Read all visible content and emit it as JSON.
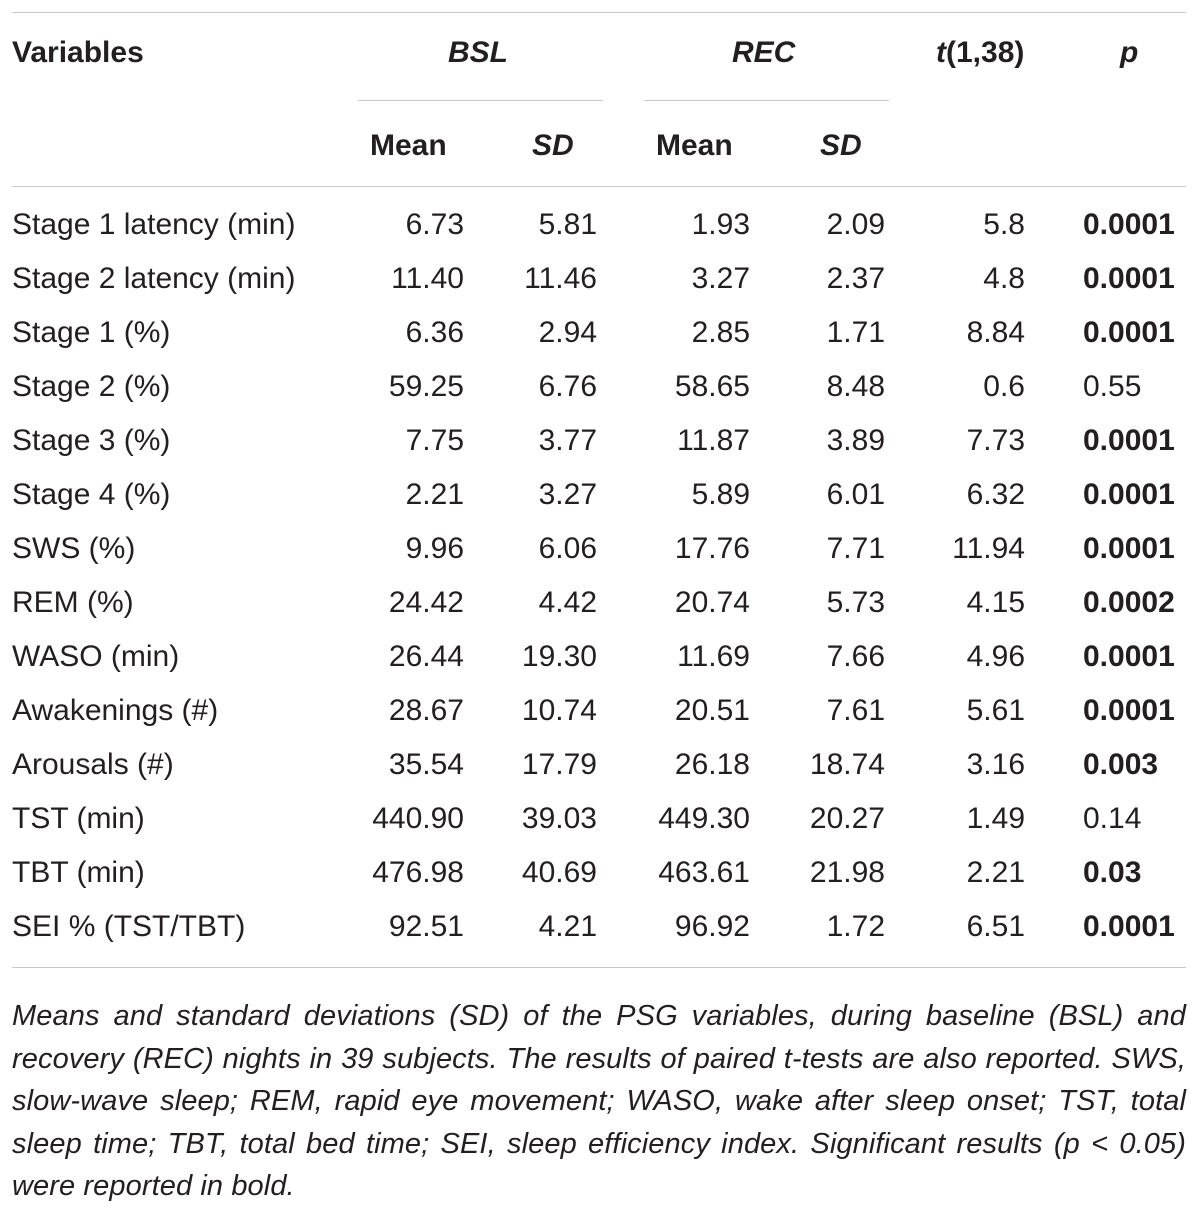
{
  "table": {
    "headers": {
      "variables": "Variables",
      "bsl": "BSL",
      "rec": "REC",
      "t_prefix": "t",
      "t_suffix": "(1,38)",
      "p": "p",
      "mean": "Mean",
      "sd": "SD"
    },
    "rows": [
      {
        "variable": "Stage 1 latency (min)",
        "bsl_mean": "6.73",
        "bsl_sd": "5.81",
        "rec_mean": "1.93",
        "rec_sd": "2.09",
        "t": "5.8",
        "p": "0.0001",
        "significant": true
      },
      {
        "variable": "Stage 2 latency (min)",
        "bsl_mean": "11.40",
        "bsl_sd": "11.46",
        "rec_mean": "3.27",
        "rec_sd": "2.37",
        "t": "4.8",
        "p": "0.0001",
        "significant": true
      },
      {
        "variable": "Stage 1 (%)",
        "bsl_mean": "6.36",
        "bsl_sd": "2.94",
        "rec_mean": "2.85",
        "rec_sd": "1.71",
        "t": "8.84",
        "p": "0.0001",
        "significant": true
      },
      {
        "variable": "Stage 2 (%)",
        "bsl_mean": "59.25",
        "bsl_sd": "6.76",
        "rec_mean": "58.65",
        "rec_sd": "8.48",
        "t": "0.6",
        "p": "0.55",
        "significant": false
      },
      {
        "variable": "Stage 3 (%)",
        "bsl_mean": "7.75",
        "bsl_sd": "3.77",
        "rec_mean": "11.87",
        "rec_sd": "3.89",
        "t": "7.73",
        "p": "0.0001",
        "significant": true
      },
      {
        "variable": "Stage 4 (%)",
        "bsl_mean": "2.21",
        "bsl_sd": "3.27",
        "rec_mean": "5.89",
        "rec_sd": "6.01",
        "t": "6.32",
        "p": "0.0001",
        "significant": true
      },
      {
        "variable": "SWS (%)",
        "bsl_mean": "9.96",
        "bsl_sd": "6.06",
        "rec_mean": "17.76",
        "rec_sd": "7.71",
        "t": "11.94",
        "p": "0.0001",
        "significant": true
      },
      {
        "variable": "REM (%)",
        "bsl_mean": "24.42",
        "bsl_sd": "4.42",
        "rec_mean": "20.74",
        "rec_sd": "5.73",
        "t": "4.15",
        "p": "0.0002",
        "significant": true
      },
      {
        "variable": "WASO (min)",
        "bsl_mean": "26.44",
        "bsl_sd": "19.30",
        "rec_mean": "11.69",
        "rec_sd": "7.66",
        "t": "4.96",
        "p": "0.0001",
        "significant": true
      },
      {
        "variable": "Awakenings (#)",
        "bsl_mean": "28.67",
        "bsl_sd": "10.74",
        "rec_mean": "20.51",
        "rec_sd": "7.61",
        "t": "5.61",
        "p": "0.0001",
        "significant": true
      },
      {
        "variable": "Arousals (#)",
        "bsl_mean": "35.54",
        "bsl_sd": "17.79",
        "rec_mean": "26.18",
        "rec_sd": "18.74",
        "t": "3.16",
        "p": "0.003",
        "significant": true
      },
      {
        "variable": "TST (min)",
        "bsl_mean": "440.90",
        "bsl_sd": "39.03",
        "rec_mean": "449.30",
        "rec_sd": "20.27",
        "t": "1.49",
        "p": "0.14",
        "significant": false
      },
      {
        "variable": "TBT (min)",
        "bsl_mean": "476.98",
        "bsl_sd": "40.69",
        "rec_mean": "463.61",
        "rec_sd": "21.98",
        "t": "2.21",
        "p": "0.03",
        "significant": true
      },
      {
        "variable": "SEI % (TST/TBT)",
        "bsl_mean": "92.51",
        "bsl_sd": "4.21",
        "rec_mean": "96.92",
        "rec_sd": "1.72",
        "t": "6.51",
        "p": "0.0001",
        "significant": true
      }
    ]
  },
  "caption": "Means and standard deviations (SD) of the PSG variables, during baseline (BSL) and recovery (REC) nights in 39 subjects. The results of paired t-tests are also reported. SWS, slow-wave sleep; REM, rapid eye movement; WASO, wake after sleep onset; TST, total sleep time; TBT, total bed time; SEI, sleep efficiency index. Significant results (p < 0.05) were reported in bold."
}
